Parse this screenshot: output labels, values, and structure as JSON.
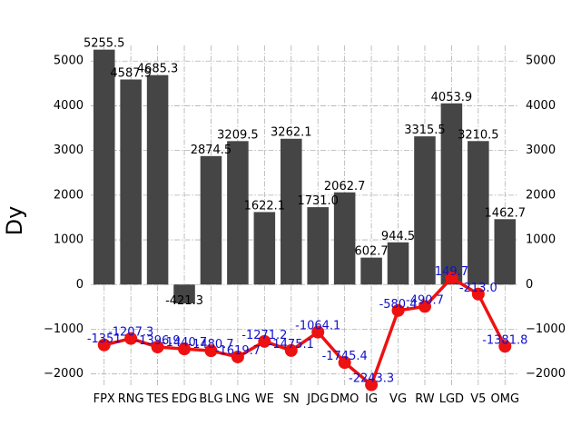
{
  "chart_data": {
    "type": "bar+line",
    "title": "",
    "ylabel": "Dy",
    "xlabel": "",
    "ylim": [
      -2250,
      5350
    ],
    "yticks": [
      -2000,
      -1000,
      0,
      1000,
      2000,
      3000,
      4000,
      5000
    ],
    "ytick_labels": [
      "−2000",
      "−1000",
      "0",
      "1000",
      "2000",
      "3000",
      "4000",
      "5000"
    ],
    "grid": true,
    "categories": [
      "FPX",
      "RNG",
      "TES",
      "EDG",
      "BLG",
      "LNG",
      "WE",
      "SN",
      "JDG",
      "DMO",
      "IG",
      "VG",
      "RW",
      "LGD",
      "V5",
      "OMG"
    ],
    "series": [
      {
        "kind": "bar",
        "color": "#454545",
        "values": [
          5255.5,
          4587.9,
          4685.3,
          -421.3,
          2874.5,
          3209.5,
          1622.1,
          3262.1,
          1731.0,
          2062.7,
          602.7,
          944.5,
          3315.5,
          4053.9,
          3210.5,
          1462.7
        ],
        "labels": [
          "5255.5",
          "4587.9",
          "4685.3",
          "-421.3",
          "2874.5",
          "3209.5",
          "1622.1",
          "3262.1",
          "1731.0",
          "2062.7",
          "602.7",
          "944.5",
          "3315.5",
          "4053.9",
          "3210.5",
          "1462.7"
        ]
      },
      {
        "kind": "line",
        "color": "#ee1111",
        "label_color": "#1111cc",
        "values": [
          -1351.0,
          -1207.3,
          -1396.9,
          -1440.7,
          -1480.7,
          -1619.7,
          -1271.2,
          -1475.1,
          -1064.1,
          -1745.4,
          -2243.3,
          -580.4,
          -490.7,
          149.7,
          -213.0,
          -1381.8
        ],
        "labels": [
          "-1351",
          "-1207.3",
          "-1396.9",
          "-1440.7",
          "-1480.7",
          "-1619.7",
          "-1271.2",
          "-1475.1",
          "-1064.1",
          "-1745.4",
          "-2243.3",
          "-580.4",
          "-490.7",
          "149.7",
          "-213.0",
          "-1381.8"
        ]
      }
    ]
  }
}
